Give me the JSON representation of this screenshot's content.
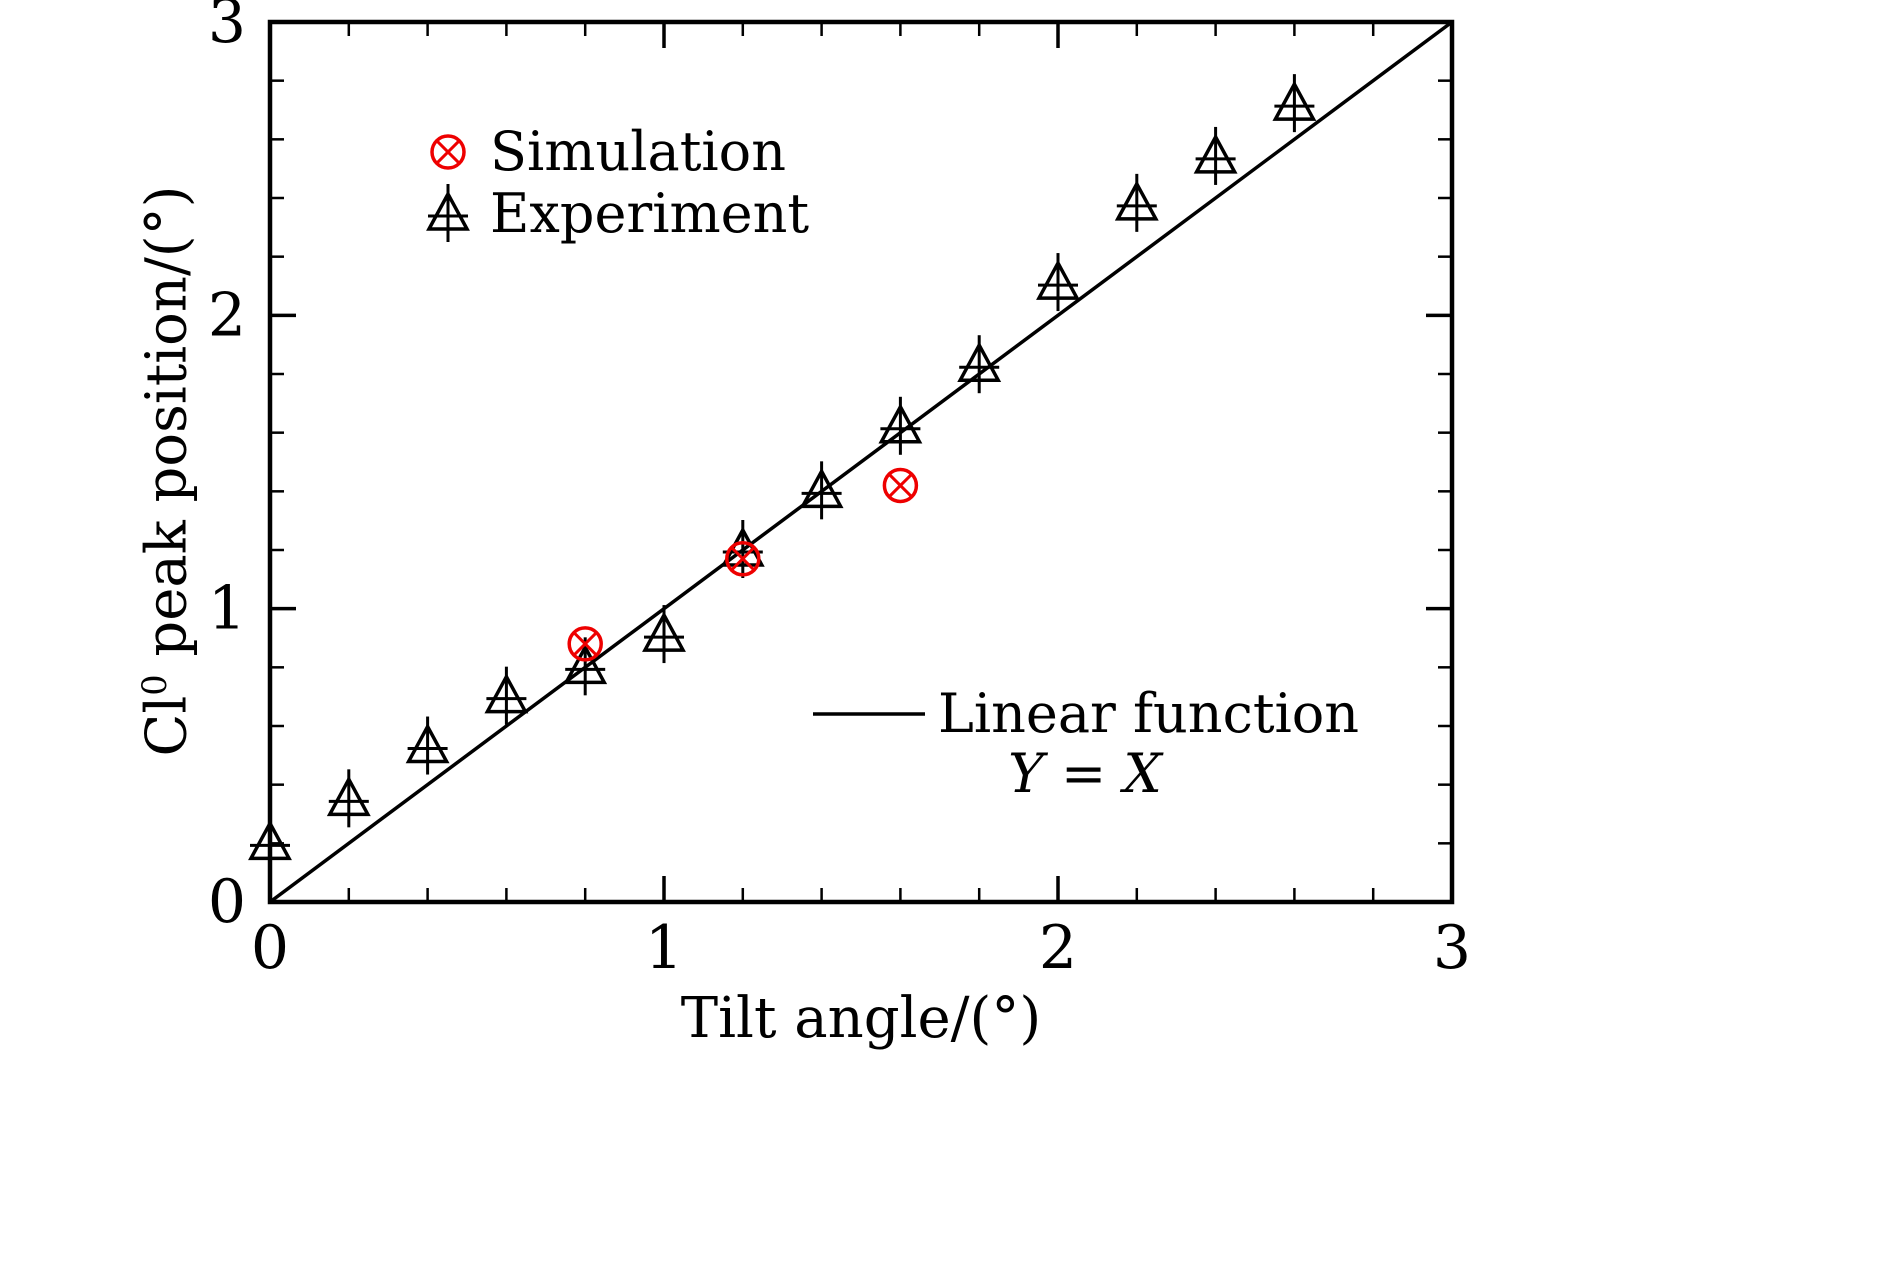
{
  "figure": {
    "background": "#ffffff",
    "accent_red": "#ee0000",
    "ink": "#000000"
  },
  "chart_data": {
    "type": "scatter",
    "title": "",
    "xlabel": "Tilt angle/(°)",
    "ylabel": "Cl⁰ peak position/(°)",
    "ylabel_parts": {
      "prefix": "Cl",
      "sup": "0",
      "suffix": " peak position/(°)"
    },
    "xlim": [
      0,
      3
    ],
    "ylim": [
      0,
      3
    ],
    "x_ticks": [
      0,
      1,
      2,
      3
    ],
    "y_ticks": [
      0,
      1,
      2,
      3
    ],
    "minor_tick_step": 0.2,
    "grid": false,
    "series": [
      {
        "name": "Linear function",
        "kind": "line",
        "equation": "Y = X",
        "color": "#000000",
        "points": [
          [
            0,
            0
          ],
          [
            3,
            3
          ]
        ]
      },
      {
        "name": "Experiment",
        "kind": "scatter",
        "marker": "triangle-cross",
        "color": "#000000",
        "yerr": 0.08,
        "points": [
          [
            0.0,
            0.2
          ],
          [
            0.2,
            0.35
          ],
          [
            0.4,
            0.53
          ],
          [
            0.6,
            0.7
          ],
          [
            0.8,
            0.8
          ],
          [
            1.0,
            0.91
          ],
          [
            1.2,
            1.2
          ],
          [
            1.4,
            1.4
          ],
          [
            1.6,
            1.62
          ],
          [
            1.8,
            1.83
          ],
          [
            2.0,
            2.11
          ],
          [
            2.2,
            2.38
          ],
          [
            2.4,
            2.54
          ],
          [
            2.6,
            2.72
          ]
        ]
      },
      {
        "name": "Simulation",
        "kind": "scatter",
        "marker": "circle-x",
        "color": "#ee0000",
        "points": [
          [
            0.8,
            0.88
          ],
          [
            1.2,
            1.17
          ],
          [
            1.6,
            1.42
          ]
        ]
      }
    ],
    "legend_top": {
      "items": [
        {
          "label": "Simulation",
          "marker": "circle-x",
          "color": "#ee0000"
        },
        {
          "label": "Experiment",
          "marker": "triangle-cross",
          "color": "#000000"
        }
      ]
    },
    "legend_line": {
      "label": "Linear function",
      "equation": "Y = X"
    }
  }
}
